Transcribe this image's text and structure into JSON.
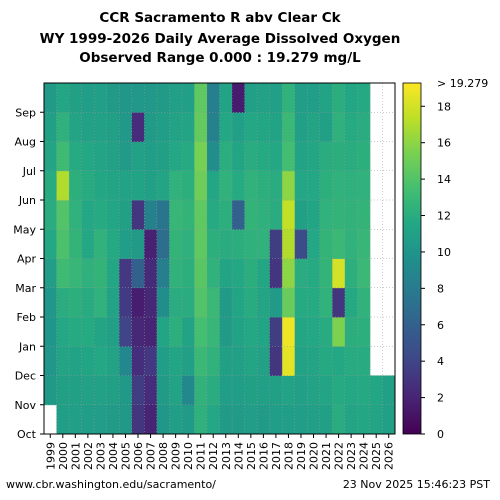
{
  "title_lines": [
    "CCR Sacramento R abv Clear Ck",
    "WY 1999-2026 Daily Average Dissolved Oxygen",
    "Observed Range 0.000 : 19.279 mg/L"
  ],
  "footer": {
    "url": "www.cbr.washington.edu/sacramento/",
    "timestamp": "23 Nov 2025 15:46:23 PST"
  },
  "chart_data": {
    "type": "heatmap",
    "title": "CCR Sacramento R abv Clear Ck WY 1999-2026 Daily Average Dissolved Oxygen",
    "subtitle": "Observed Range 0.000 : 19.279 mg/L",
    "x_categories": [
      "1999",
      "2000",
      "2001",
      "2002",
      "2003",
      "2004",
      "2005",
      "2006",
      "2007",
      "2008",
      "2009",
      "2010",
      "2011",
      "2012",
      "2013",
      "2014",
      "2015",
      "2016",
      "2017",
      "2018",
      "2019",
      "2020",
      "2021",
      "2022",
      "2023",
      "2024",
      "2025",
      "2026"
    ],
    "y_categories": [
      "Oct",
      "Nov",
      "Dec",
      "Jan",
      "Feb",
      "Mar",
      "Apr",
      "May",
      "Jun",
      "Jul",
      "Aug",
      "Sep"
    ],
    "colorbar": {
      "min": 0,
      "max": 19.279,
      "ticks": [
        0,
        2,
        4,
        6,
        8,
        10,
        12,
        14,
        16,
        18
      ],
      "top_label": "> 19.279",
      "colormap": "viridis"
    },
    "values": [
      [
        null,
        10.4,
        10.2,
        10.1,
        10.2,
        10.7,
        11.6,
        12.0,
        11.9,
        11.3,
        11.0,
        10.6
      ],
      [
        10.8,
        11.0,
        11.3,
        11.6,
        12.0,
        13.2,
        13.8,
        14.0,
        17.0,
        13.2,
        12.3,
        11.5
      ],
      [
        10.9,
        11.0,
        11.2,
        11.8,
        12.2,
        12.8,
        12.6,
        12.4,
        12.2,
        11.8,
        11.3,
        11.0
      ],
      [
        10.8,
        11.1,
        11.4,
        11.8,
        11.9,
        12.3,
        11.6,
        11.6,
        11.9,
        11.6,
        11.1,
        10.8
      ],
      [
        10.7,
        11.1,
        11.6,
        11.3,
        12.4,
        12.6,
        12.4,
        11.8,
        11.5,
        11.3,
        11.1,
        10.9
      ],
      [
        10.6,
        11.0,
        11.2,
        10.9,
        11.2,
        11.5,
        11.7,
        11.5,
        11.3,
        11.1,
        10.9,
        10.6
      ],
      [
        10.4,
        10.4,
        9.0,
        4.0,
        3.4,
        3.2,
        10.8,
        11.0,
        11.2,
        10.6,
        10.4,
        10.2
      ],
      [
        3.0,
        3.5,
        2.6,
        2.2,
        1.6,
        6.0,
        10.5,
        3.0,
        11.2,
        11.1,
        2.5,
        10.3
      ],
      [
        2.0,
        2.5,
        3.2,
        2.0,
        2.2,
        2.4,
        1.8,
        8.5,
        11.0,
        10.8,
        10.5,
        10.3
      ],
      [
        10.2,
        10.6,
        10.8,
        11.4,
        9.5,
        8.2,
        7.0,
        7.5,
        11.3,
        11.0,
        10.8,
        10.5
      ],
      [
        10.8,
        11.2,
        11.4,
        12.2,
        12.0,
        12.5,
        12.6,
        12.8,
        12.4,
        11.6,
        11.2,
        10.9
      ],
      [
        10.6,
        9.0,
        10.9,
        11.2,
        12.0,
        12.2,
        12.3,
        12.6,
        12.2,
        11.8,
        11.3,
        10.9
      ],
      [
        12.3,
        12.5,
        13.0,
        13.5,
        14.0,
        14.3,
        14.5,
        14.5,
        15.0,
        15.3,
        14.7,
        14.5
      ],
      [
        11.6,
        12.0,
        12.4,
        12.8,
        13.0,
        12.4,
        12.2,
        11.8,
        11.5,
        9.5,
        8.5,
        8.3
      ],
      [
        10.5,
        10.8,
        11.0,
        10.5,
        10.6,
        11.3,
        12.0,
        12.2,
        12.4,
        12.1,
        11.6,
        11.2
      ],
      [
        10.6,
        10.8,
        10.9,
        11.2,
        11.4,
        11.6,
        12.1,
        6.0,
        11.8,
        11.4,
        10.9,
        1.5
      ],
      [
        10.7,
        11.0,
        11.3,
        11.6,
        11.9,
        12.1,
        12.3,
        12.6,
        12.4,
        12.0,
        11.6,
        10.9
      ],
      [
        10.6,
        10.9,
        11.1,
        11.4,
        11.3,
        11.5,
        12.4,
        12.3,
        12.2,
        11.8,
        11.5,
        11.1
      ],
      [
        10.8,
        11.0,
        3.0,
        3.5,
        10.5,
        3.0,
        3.5,
        12.0,
        12.0,
        11.6,
        11.2,
        10.9
      ],
      [
        10.8,
        11.2,
        18.5,
        18.8,
        14.8,
        16.0,
        17.0,
        17.5,
        16.0,
        13.4,
        13.0,
        12.4
      ],
      [
        10.8,
        10.9,
        11.2,
        11.5,
        11.8,
        12.0,
        4.5,
        11.0,
        11.6,
        11.2,
        10.9,
        10.7
      ],
      [
        10.9,
        11.2,
        11.3,
        11.6,
        11.8,
        11.8,
        11.6,
        11.4,
        11.6,
        11.5,
        11.3,
        10.8
      ],
      [
        11.0,
        11.3,
        11.7,
        11.9,
        12.4,
        12.6,
        12.6,
        12.4,
        12.2,
        12.0,
        11.0,
        11.2
      ],
      [
        12.0,
        11.8,
        11.6,
        15.5,
        3.0,
        18.0,
        13.0,
        12.6,
        12.4,
        12.1,
        12.3,
        12.1
      ],
      [
        11.3,
        11.6,
        11.9,
        12.1,
        11.7,
        12.2,
        12.4,
        12.5,
        12.3,
        12.0,
        11.8,
        11.5
      ],
      [
        11.5,
        11.7,
        11.9,
        12.2,
        12.4,
        13.0,
        12.8,
        12.6,
        12.4,
        12.2,
        12.0,
        11.7
      ],
      [
        11.3,
        11.5,
        null,
        null,
        null,
        null,
        null,
        null,
        null,
        null,
        null,
        null
      ],
      [
        11.0,
        11.0,
        null,
        null,
        null,
        null,
        null,
        null,
        null,
        null,
        null,
        null
      ]
    ]
  }
}
